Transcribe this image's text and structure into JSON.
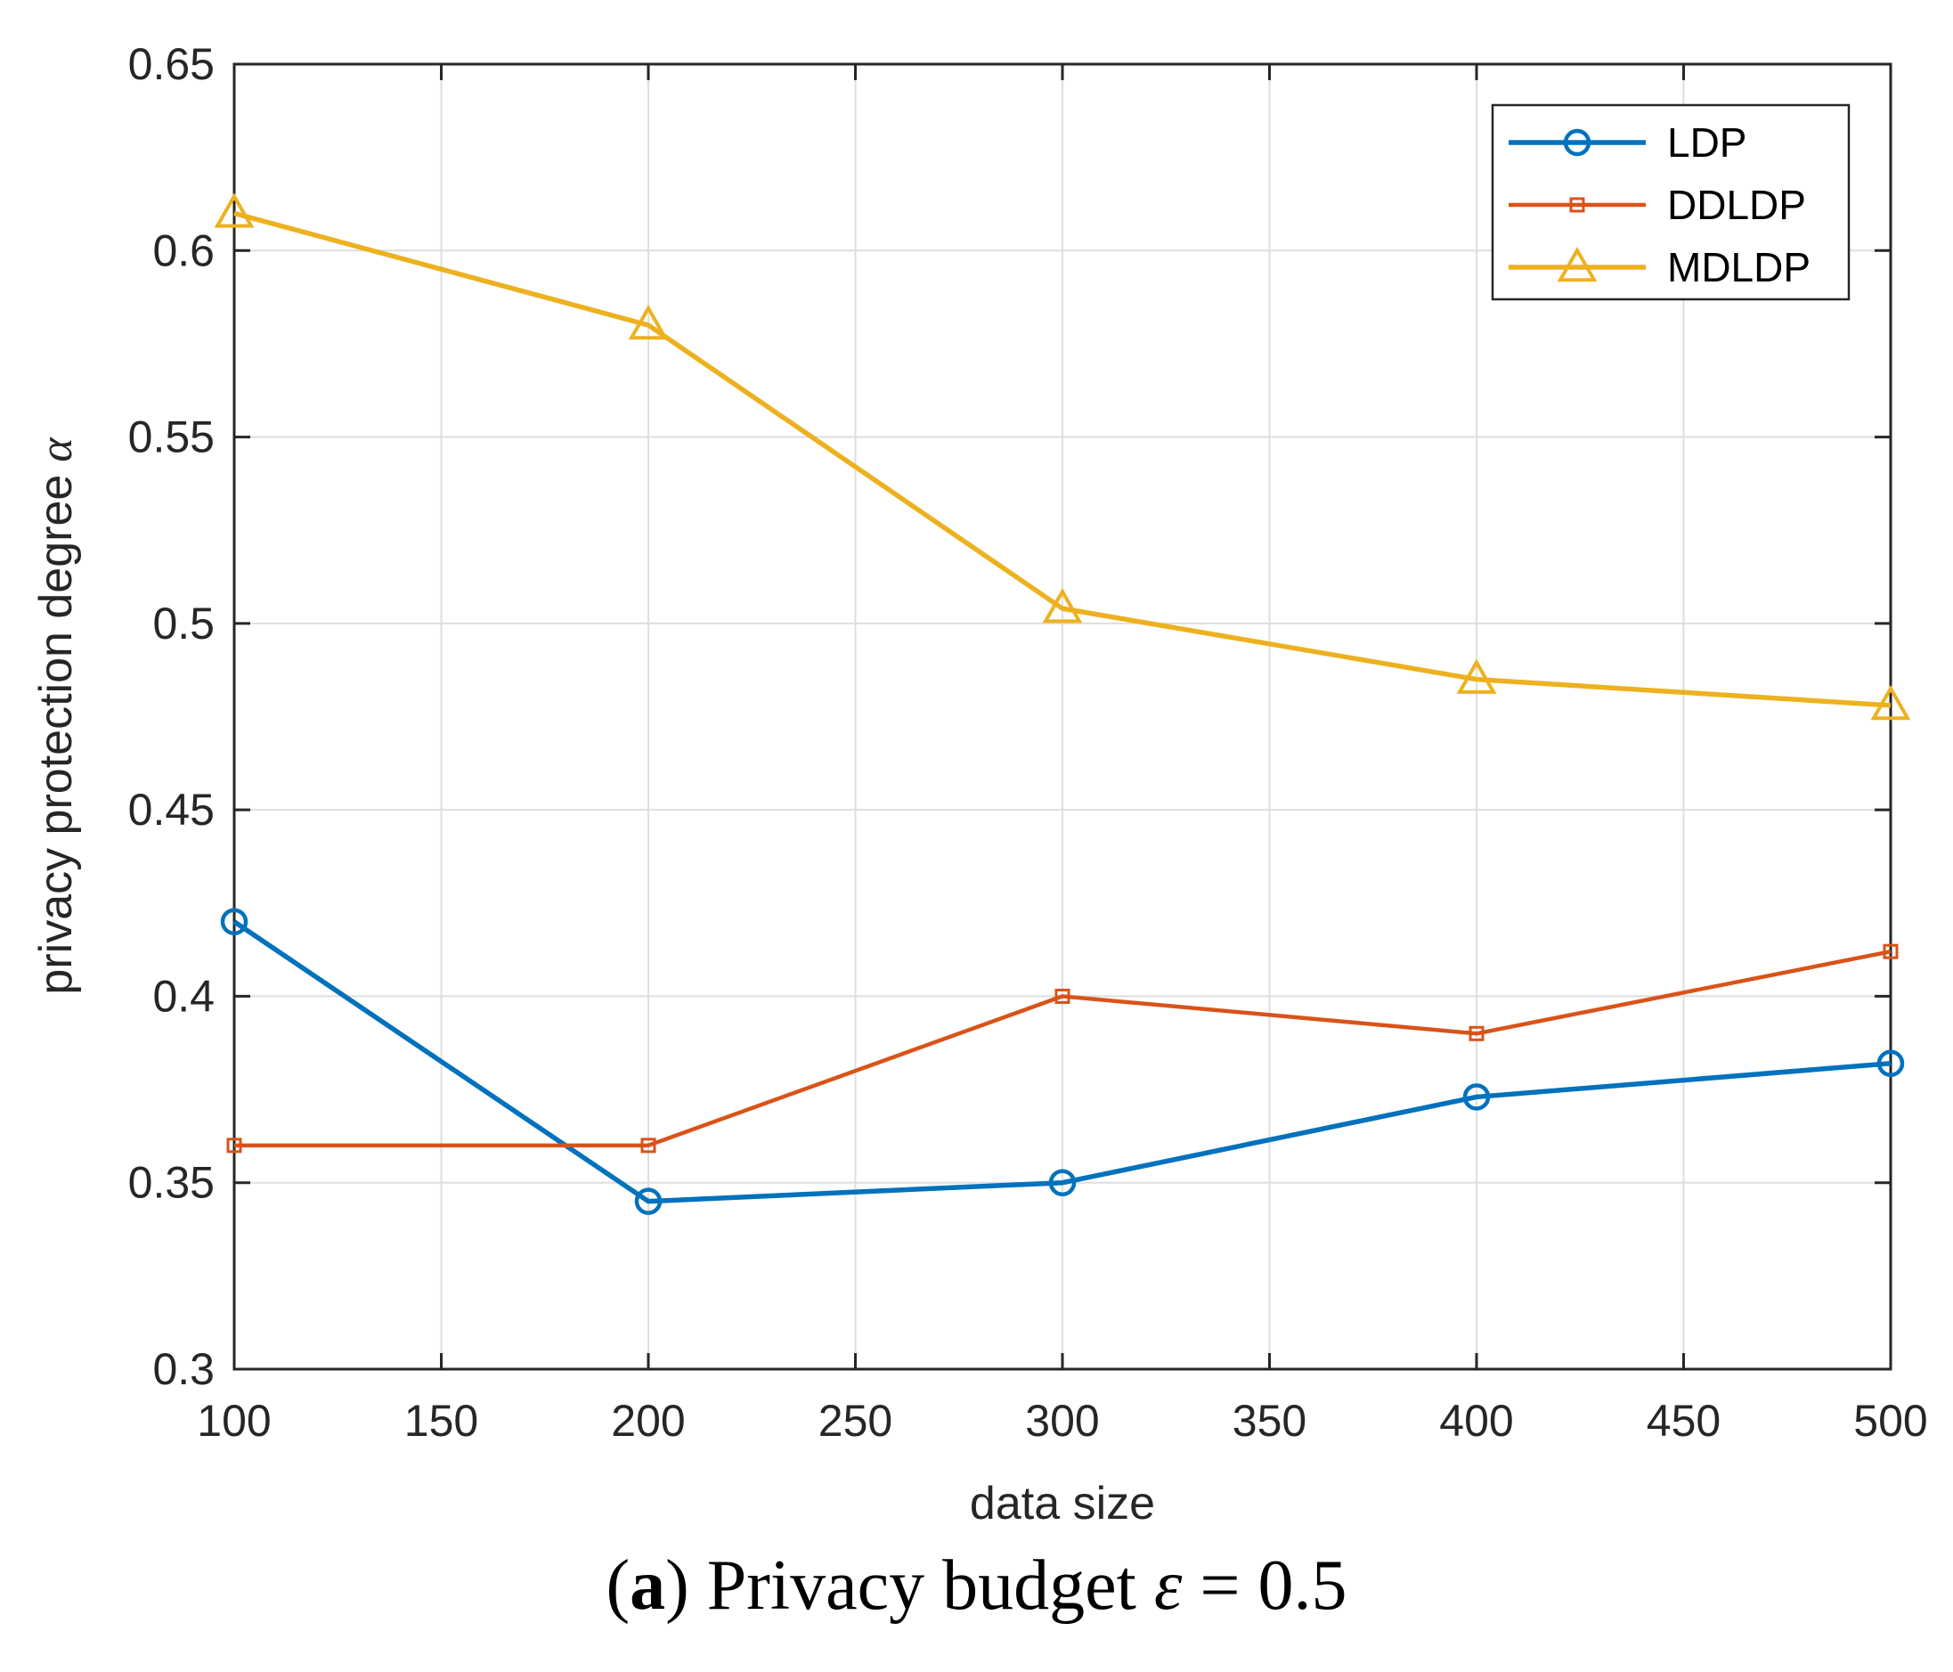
{
  "chart_data": {
    "type": "line",
    "title": "",
    "xlabel": "data size",
    "ylabel": "privacy protection degree",
    "ylabel_symbol": "α",
    "x": [
      100,
      200,
      300,
      400,
      500
    ],
    "xlim": [
      100,
      500
    ],
    "ylim": [
      0.3,
      0.65
    ],
    "xticks": [
      "100",
      "150",
      "200",
      "250",
      "300",
      "350",
      "400",
      "450",
      "500"
    ],
    "yticks": [
      "0.3",
      "0.35",
      "0.4",
      "0.45",
      "0.5",
      "0.55",
      "0.6",
      "0.65"
    ],
    "grid": true,
    "legend_position": "top-right",
    "series": [
      {
        "name": "LDP",
        "marker": "circle",
        "color": "#0072BD",
        "values": [
          0.42,
          0.345,
          0.35,
          0.373,
          0.382
        ]
      },
      {
        "name": "DDLDP",
        "marker": "square",
        "color": "#D95319",
        "values": [
          0.36,
          0.36,
          0.4,
          0.39,
          0.412
        ]
      },
      {
        "name": "MDLDP",
        "marker": "triangle",
        "color": "#EDB120",
        "values": [
          0.61,
          0.58,
          0.504,
          0.485,
          0.478
        ]
      }
    ]
  },
  "caption": {
    "label": "a",
    "text": " Privacy budget ",
    "symbol": "ε",
    "value": " = 0.5"
  }
}
